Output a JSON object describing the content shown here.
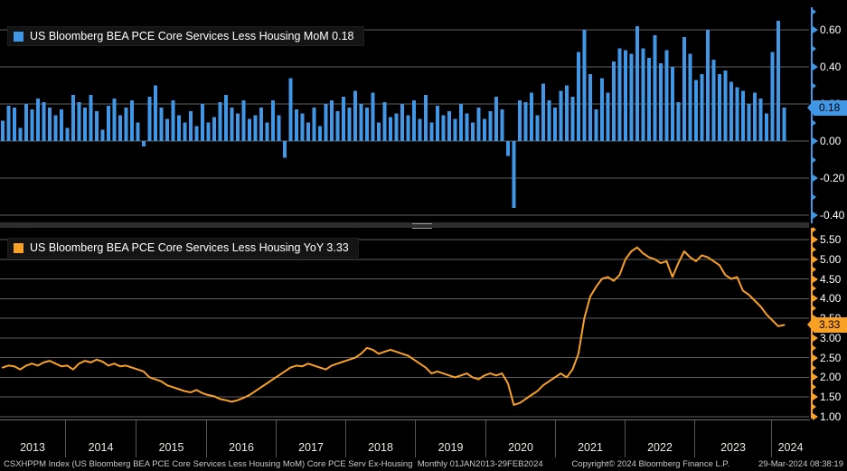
{
  "colors": {
    "blue": "#3f97e6",
    "orange": "#f9a125",
    "grid": "#5f5f5f",
    "background": "#000000",
    "axis_text": "#ffffff",
    "year_text": "#eaeadf",
    "footer_text": "#c9c9c9",
    "tag_text": "#000000"
  },
  "top_panel": {
    "legend_label": "US Bloomberg BEA PCE Core Services Less Housing MoM 0.18",
    "current_value_tag": "0.18"
  },
  "bottom_panel": {
    "legend_label": "US Bloomberg BEA PCE Core Services Less Housing YoY 3.33",
    "current_value_tag": "3.33"
  },
  "x_axis": {
    "years": [
      "2013",
      "2014",
      "2015",
      "2016",
      "2017",
      "2018",
      "2019",
      "2020",
      "2021",
      "2022",
      "2023",
      "2024"
    ]
  },
  "footer": {
    "left": "CSXHPPM Index (US Bloomberg BEA PCE Core Services Less Housing MoM) Core PCE Serv Ex-Housing  Monthly 01JAN2013-29FEB2024",
    "center": "Copyright© 2024 Bloomberg Finance L.P.",
    "right": "29-Mar-2024 08:38:19"
  },
  "chart_data": [
    {
      "type": "bar",
      "name": "US Bloomberg BEA PCE Core Services Less Housing MoM",
      "frequency": "monthly",
      "x_start": "2013-01",
      "x_end": "2024-02",
      "last_value": 0.18,
      "ylim": [
        -0.45,
        0.72
      ],
      "y_major_ticks": [
        0.6,
        0.4,
        0.2,
        0.0,
        -0.2,
        -0.4
      ],
      "y_tick_labels": [
        "0.60",
        "0.40",
        "0.20",
        "0.00",
        "-0.20",
        "-0.40"
      ],
      "legend_position": "top-left",
      "grid": true,
      "values": [
        0.11,
        0.19,
        0.18,
        0.07,
        0.2,
        0.17,
        0.23,
        0.21,
        0.18,
        0.14,
        0.17,
        0.07,
        0.25,
        0.21,
        0.18,
        0.25,
        0.16,
        0.06,
        0.19,
        0.23,
        0.14,
        0.18,
        0.22,
        0.1,
        -0.03,
        0.24,
        0.3,
        0.18,
        0.12,
        0.22,
        0.14,
        0.1,
        0.16,
        0.08,
        0.2,
        0.1,
        0.13,
        0.21,
        0.25,
        0.18,
        0.15,
        0.22,
        0.12,
        0.14,
        0.18,
        0.1,
        0.22,
        0.14,
        -0.09,
        0.34,
        0.17,
        0.15,
        0.1,
        0.18,
        0.08,
        0.2,
        0.22,
        0.16,
        0.24,
        0.18,
        0.27,
        0.2,
        0.18,
        0.26,
        0.1,
        0.21,
        0.13,
        0.15,
        0.2,
        0.14,
        0.22,
        0.12,
        0.25,
        0.1,
        0.19,
        0.14,
        0.16,
        0.12,
        0.2,
        0.15,
        0.1,
        0.18,
        0.12,
        0.16,
        0.24,
        0.17,
        -0.08,
        -0.36,
        0.22,
        0.21,
        0.26,
        0.14,
        0.31,
        0.22,
        0.18,
        0.27,
        0.3,
        0.24,
        0.48,
        0.6,
        0.36,
        0.17,
        0.34,
        0.26,
        0.43,
        0.5,
        0.49,
        0.47,
        0.62,
        0.5,
        0.45,
        0.57,
        0.42,
        0.49,
        0.4,
        0.21,
        0.56,
        0.47,
        0.33,
        0.36,
        0.6,
        0.44,
        0.36,
        0.38,
        0.32,
        0.29,
        0.27,
        0.2,
        0.26,
        0.23,
        0.15,
        0.48,
        0.65,
        0.18
      ]
    },
    {
      "type": "line",
      "name": "US Bloomberg BEA PCE Core Services Less Housing YoY",
      "frequency": "monthly",
      "x_start": "2013-01",
      "x_end": "2024-02",
      "last_value": 3.33,
      "ylim": [
        0.95,
        5.75
      ],
      "y_major_ticks": [
        5.5,
        5.0,
        4.5,
        4.0,
        3.5,
        3.0,
        2.5,
        2.0,
        1.5,
        1.0
      ],
      "y_tick_labels": [
        "5.50",
        "5.00",
        "4.50",
        "4.00",
        "3.50",
        "3.00",
        "2.50",
        "2.00",
        "1.50",
        "1.00"
      ],
      "legend_position": "top-left",
      "grid": true,
      "values": [
        2.25,
        2.3,
        2.28,
        2.2,
        2.3,
        2.35,
        2.3,
        2.38,
        2.42,
        2.35,
        2.28,
        2.3,
        2.2,
        2.35,
        2.42,
        2.38,
        2.45,
        2.4,
        2.3,
        2.35,
        2.28,
        2.3,
        2.25,
        2.2,
        2.15,
        2.0,
        1.95,
        1.9,
        1.8,
        1.75,
        1.7,
        1.65,
        1.62,
        1.68,
        1.6,
        1.55,
        1.52,
        1.45,
        1.42,
        1.38,
        1.42,
        1.48,
        1.55,
        1.65,
        1.75,
        1.85,
        1.95,
        2.05,
        2.15,
        2.25,
        2.3,
        2.28,
        2.35,
        2.3,
        2.25,
        2.2,
        2.3,
        2.35,
        2.4,
        2.45,
        2.5,
        2.6,
        2.75,
        2.7,
        2.6,
        2.65,
        2.7,
        2.65,
        2.6,
        2.55,
        2.45,
        2.35,
        2.25,
        2.1,
        2.15,
        2.1,
        2.05,
        2.0,
        2.05,
        2.1,
        2.0,
        1.95,
        2.05,
        2.1,
        2.05,
        2.1,
        1.85,
        1.3,
        1.35,
        1.45,
        1.55,
        1.65,
        1.8,
        1.9,
        2.0,
        2.1,
        2.0,
        2.2,
        2.6,
        3.5,
        4.05,
        4.3,
        4.5,
        4.55,
        4.45,
        4.6,
        5.0,
        5.2,
        5.3,
        5.15,
        5.05,
        5.0,
        4.9,
        4.95,
        4.55,
        4.9,
        5.2,
        5.05,
        4.95,
        5.1,
        5.05,
        4.95,
        4.85,
        4.6,
        4.5,
        4.55,
        4.2,
        4.1,
        3.95,
        3.8,
        3.6,
        3.45,
        3.3,
        3.33
      ]
    }
  ]
}
